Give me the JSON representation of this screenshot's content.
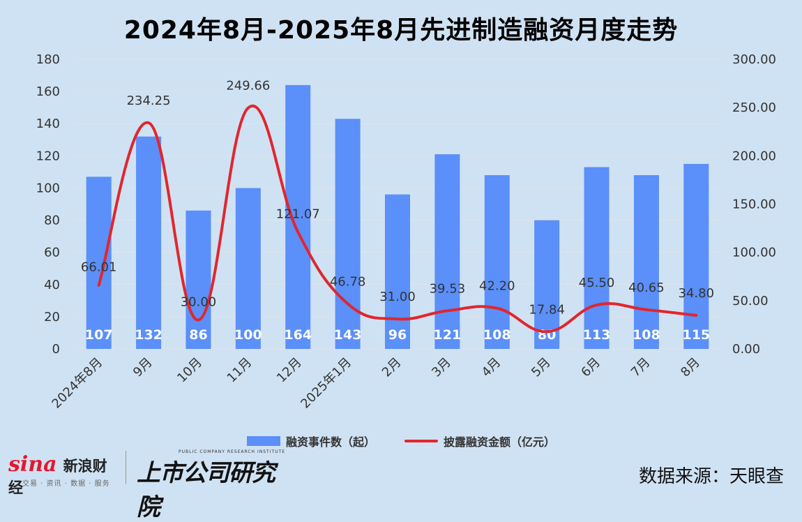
{
  "title": "2024年8月-2025年8月先进制造融资月度走势",
  "source": "数据来源：天眼查",
  "logos": {
    "sina_brand": "sina",
    "sina_cn": "新浪财经",
    "sina_sub": "交易 · 资讯 · 数据 · 服务",
    "research_cn": "上市公司研究院",
    "research_en": "PUBLIC COMPANY RESEARCH INSTITUTE"
  },
  "colors": {
    "bar": "#5b8ff9",
    "line": "#e1262d",
    "background": "#cfe2f3",
    "grid": "#dfe3e8"
  },
  "chart_data": {
    "type": "bar",
    "title": "2024年8月-2025年8月先进制造融资月度走势",
    "categories": [
      "2024年8月",
      "9月",
      "10月",
      "11月",
      "12月",
      "2025年1月",
      "2月",
      "3月",
      "4月",
      "5月",
      "6月",
      "7月",
      "8月"
    ],
    "series": [
      {
        "name": "融资事件数（起）",
        "type": "bar",
        "axis": "left",
        "values": [
          107,
          132,
          86,
          100,
          164,
          143,
          96,
          121,
          108,
          80,
          113,
          108,
          115
        ],
        "labels": [
          "107",
          "132",
          "86",
          "100",
          "164",
          "143",
          "96",
          "121",
          "108",
          "80",
          "113",
          "108",
          "115"
        ]
      },
      {
        "name": "披露融资金额（亿元）",
        "type": "line",
        "axis": "right",
        "smooth": true,
        "values": [
          66.01,
          234.25,
          30.0,
          249.66,
          121.07,
          46.78,
          31.0,
          39.53,
          42.2,
          17.84,
          45.5,
          40.65,
          34.8
        ],
        "labels": [
          "66.01",
          "234.25",
          "30.00",
          "249.66",
          "121.07",
          "46.78",
          "31.00",
          "39.53",
          "42.20",
          "17.84",
          "45.50",
          "40.65",
          "34.80"
        ]
      }
    ],
    "y_left": {
      "min": 0,
      "max": 180,
      "ticks": [
        "0",
        "20",
        "40",
        "60",
        "80",
        "100",
        "120",
        "140",
        "160",
        "180"
      ]
    },
    "y_right": {
      "min": 0,
      "max": 300,
      "ticks": [
        "0.00",
        "50.00",
        "100.00",
        "150.00",
        "200.00",
        "250.00",
        "300.00"
      ]
    },
    "grid": true,
    "legend_position": "bottom"
  }
}
